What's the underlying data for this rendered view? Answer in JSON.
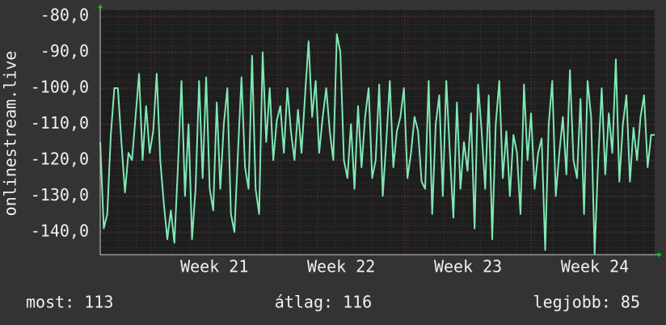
{
  "chart_data": {
    "type": "line",
    "ylabel": "onlinestream.live",
    "ylim": [
      -146.3,
      -78.2
    ],
    "yticks": [
      {
        "value": -80,
        "label": "-80,0"
      },
      {
        "value": -90,
        "label": "-90,0"
      },
      {
        "value": -100,
        "label": "-100,0"
      },
      {
        "value": -110,
        "label": "-110,0"
      },
      {
        "value": -120,
        "label": "-120,0"
      },
      {
        "value": -130,
        "label": "-130,0"
      },
      {
        "value": -140,
        "label": "-140,0"
      }
    ],
    "xlim": [
      0,
      30.6
    ],
    "xticks": [
      {
        "value": 6.3,
        "label": "Week 21"
      },
      {
        "value": 13.3,
        "label": "Week 22"
      },
      {
        "value": 20.3,
        "label": "Week 23"
      },
      {
        "value": 27.3,
        "label": "Week 24"
      }
    ],
    "xgrid": [
      2.8,
      9.8,
      16.8,
      23.8
    ],
    "grid": true,
    "series": [
      {
        "color": "#7fe8b4",
        "values": [
          -115,
          -139,
          -135,
          -113,
          -100,
          -100,
          -115,
          -129,
          -118,
          -120,
          -108,
          -96,
          -120,
          -105,
          -118,
          -112,
          -96,
          -120,
          -132,
          -142,
          -134,
          -143,
          -122,
          -98,
          -130,
          -110,
          -142,
          -128,
          -98,
          -125,
          -97,
          -128,
          -134,
          -104,
          -128,
          -110,
          -100,
          -135,
          -140,
          -118,
          -97,
          -122,
          -128,
          -91,
          -128,
          -135,
          -90,
          -115,
          -100,
          -120,
          -109,
          -105,
          -118,
          -100,
          -112,
          -120,
          -106,
          -118,
          -102,
          -87,
          -108,
          -98,
          -118,
          -108,
          -100,
          -112,
          -120,
          -85,
          -90,
          -120,
          -125,
          -110,
          -128,
          -105,
          -122,
          -108,
          -100,
          -125,
          -120,
          -99,
          -130,
          -115,
          -98,
          -122,
          -112,
          -108,
          -100,
          -125,
          -118,
          -108,
          -112,
          -126,
          -128,
          -98,
          -135,
          -110,
          -102,
          -130,
          -98,
          -118,
          -136,
          -104,
          -128,
          -115,
          -123,
          -107,
          -139,
          -99,
          -112,
          -128,
          -102,
          -142,
          -110,
          -98,
          -125,
          -112,
          -130,
          -113,
          -118,
          -135,
          -99,
          -120,
          -107,
          -128,
          -118,
          -114,
          -145,
          -110,
          -98,
          -130,
          -118,
          -108,
          -124,
          -95,
          -120,
          -125,
          -103,
          -135,
          -98,
          -108,
          -146,
          -120,
          -100,
          -124,
          -107,
          -118,
          -92,
          -126,
          -110,
          -102,
          -126,
          -111,
          -120,
          -108,
          -102,
          -122,
          -113,
          -113
        ]
      }
    ],
    "footer": [
      "most: 113",
      "átlag: 116",
      "legjobb: 85"
    ]
  }
}
